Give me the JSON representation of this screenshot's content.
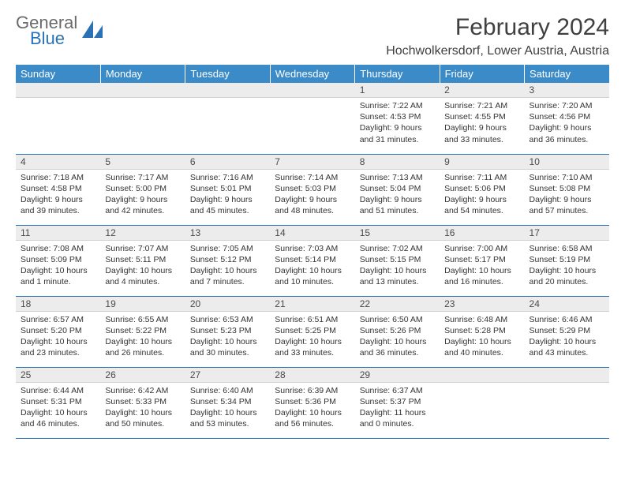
{
  "logo": {
    "word1": "General",
    "word2": "Blue"
  },
  "title": "February 2024",
  "location": "Hochwolkersdorf, Lower Austria, Austria",
  "colors": {
    "header_bg": "#3b8bc8",
    "header_text": "#ffffff",
    "daynum_bg": "#ececec",
    "border": "#2a72b5",
    "logo_gray": "#6b6b6b",
    "logo_blue": "#2a72b5",
    "body_text": "#333333"
  },
  "day_headers": [
    "Sunday",
    "Monday",
    "Tuesday",
    "Wednesday",
    "Thursday",
    "Friday",
    "Saturday"
  ],
  "weeks": [
    [
      null,
      null,
      null,
      null,
      {
        "n": "1",
        "sunrise": "Sunrise: 7:22 AM",
        "sunset": "Sunset: 4:53 PM",
        "daylight1": "Daylight: 9 hours",
        "daylight2": "and 31 minutes."
      },
      {
        "n": "2",
        "sunrise": "Sunrise: 7:21 AM",
        "sunset": "Sunset: 4:55 PM",
        "daylight1": "Daylight: 9 hours",
        "daylight2": "and 33 minutes."
      },
      {
        "n": "3",
        "sunrise": "Sunrise: 7:20 AM",
        "sunset": "Sunset: 4:56 PM",
        "daylight1": "Daylight: 9 hours",
        "daylight2": "and 36 minutes."
      }
    ],
    [
      {
        "n": "4",
        "sunrise": "Sunrise: 7:18 AM",
        "sunset": "Sunset: 4:58 PM",
        "daylight1": "Daylight: 9 hours",
        "daylight2": "and 39 minutes."
      },
      {
        "n": "5",
        "sunrise": "Sunrise: 7:17 AM",
        "sunset": "Sunset: 5:00 PM",
        "daylight1": "Daylight: 9 hours",
        "daylight2": "and 42 minutes."
      },
      {
        "n": "6",
        "sunrise": "Sunrise: 7:16 AM",
        "sunset": "Sunset: 5:01 PM",
        "daylight1": "Daylight: 9 hours",
        "daylight2": "and 45 minutes."
      },
      {
        "n": "7",
        "sunrise": "Sunrise: 7:14 AM",
        "sunset": "Sunset: 5:03 PM",
        "daylight1": "Daylight: 9 hours",
        "daylight2": "and 48 minutes."
      },
      {
        "n": "8",
        "sunrise": "Sunrise: 7:13 AM",
        "sunset": "Sunset: 5:04 PM",
        "daylight1": "Daylight: 9 hours",
        "daylight2": "and 51 minutes."
      },
      {
        "n": "9",
        "sunrise": "Sunrise: 7:11 AM",
        "sunset": "Sunset: 5:06 PM",
        "daylight1": "Daylight: 9 hours",
        "daylight2": "and 54 minutes."
      },
      {
        "n": "10",
        "sunrise": "Sunrise: 7:10 AM",
        "sunset": "Sunset: 5:08 PM",
        "daylight1": "Daylight: 9 hours",
        "daylight2": "and 57 minutes."
      }
    ],
    [
      {
        "n": "11",
        "sunrise": "Sunrise: 7:08 AM",
        "sunset": "Sunset: 5:09 PM",
        "daylight1": "Daylight: 10 hours",
        "daylight2": "and 1 minute."
      },
      {
        "n": "12",
        "sunrise": "Sunrise: 7:07 AM",
        "sunset": "Sunset: 5:11 PM",
        "daylight1": "Daylight: 10 hours",
        "daylight2": "and 4 minutes."
      },
      {
        "n": "13",
        "sunrise": "Sunrise: 7:05 AM",
        "sunset": "Sunset: 5:12 PM",
        "daylight1": "Daylight: 10 hours",
        "daylight2": "and 7 minutes."
      },
      {
        "n": "14",
        "sunrise": "Sunrise: 7:03 AM",
        "sunset": "Sunset: 5:14 PM",
        "daylight1": "Daylight: 10 hours",
        "daylight2": "and 10 minutes."
      },
      {
        "n": "15",
        "sunrise": "Sunrise: 7:02 AM",
        "sunset": "Sunset: 5:15 PM",
        "daylight1": "Daylight: 10 hours",
        "daylight2": "and 13 minutes."
      },
      {
        "n": "16",
        "sunrise": "Sunrise: 7:00 AM",
        "sunset": "Sunset: 5:17 PM",
        "daylight1": "Daylight: 10 hours",
        "daylight2": "and 16 minutes."
      },
      {
        "n": "17",
        "sunrise": "Sunrise: 6:58 AM",
        "sunset": "Sunset: 5:19 PM",
        "daylight1": "Daylight: 10 hours",
        "daylight2": "and 20 minutes."
      }
    ],
    [
      {
        "n": "18",
        "sunrise": "Sunrise: 6:57 AM",
        "sunset": "Sunset: 5:20 PM",
        "daylight1": "Daylight: 10 hours",
        "daylight2": "and 23 minutes."
      },
      {
        "n": "19",
        "sunrise": "Sunrise: 6:55 AM",
        "sunset": "Sunset: 5:22 PM",
        "daylight1": "Daylight: 10 hours",
        "daylight2": "and 26 minutes."
      },
      {
        "n": "20",
        "sunrise": "Sunrise: 6:53 AM",
        "sunset": "Sunset: 5:23 PM",
        "daylight1": "Daylight: 10 hours",
        "daylight2": "and 30 minutes."
      },
      {
        "n": "21",
        "sunrise": "Sunrise: 6:51 AM",
        "sunset": "Sunset: 5:25 PM",
        "daylight1": "Daylight: 10 hours",
        "daylight2": "and 33 minutes."
      },
      {
        "n": "22",
        "sunrise": "Sunrise: 6:50 AM",
        "sunset": "Sunset: 5:26 PM",
        "daylight1": "Daylight: 10 hours",
        "daylight2": "and 36 minutes."
      },
      {
        "n": "23",
        "sunrise": "Sunrise: 6:48 AM",
        "sunset": "Sunset: 5:28 PM",
        "daylight1": "Daylight: 10 hours",
        "daylight2": "and 40 minutes."
      },
      {
        "n": "24",
        "sunrise": "Sunrise: 6:46 AM",
        "sunset": "Sunset: 5:29 PM",
        "daylight1": "Daylight: 10 hours",
        "daylight2": "and 43 minutes."
      }
    ],
    [
      {
        "n": "25",
        "sunrise": "Sunrise: 6:44 AM",
        "sunset": "Sunset: 5:31 PM",
        "daylight1": "Daylight: 10 hours",
        "daylight2": "and 46 minutes."
      },
      {
        "n": "26",
        "sunrise": "Sunrise: 6:42 AM",
        "sunset": "Sunset: 5:33 PM",
        "daylight1": "Daylight: 10 hours",
        "daylight2": "and 50 minutes."
      },
      {
        "n": "27",
        "sunrise": "Sunrise: 6:40 AM",
        "sunset": "Sunset: 5:34 PM",
        "daylight1": "Daylight: 10 hours",
        "daylight2": "and 53 minutes."
      },
      {
        "n": "28",
        "sunrise": "Sunrise: 6:39 AM",
        "sunset": "Sunset: 5:36 PM",
        "daylight1": "Daylight: 10 hours",
        "daylight2": "and 56 minutes."
      },
      {
        "n": "29",
        "sunrise": "Sunrise: 6:37 AM",
        "sunset": "Sunset: 5:37 PM",
        "daylight1": "Daylight: 11 hours",
        "daylight2": "and 0 minutes."
      },
      null,
      null
    ]
  ]
}
